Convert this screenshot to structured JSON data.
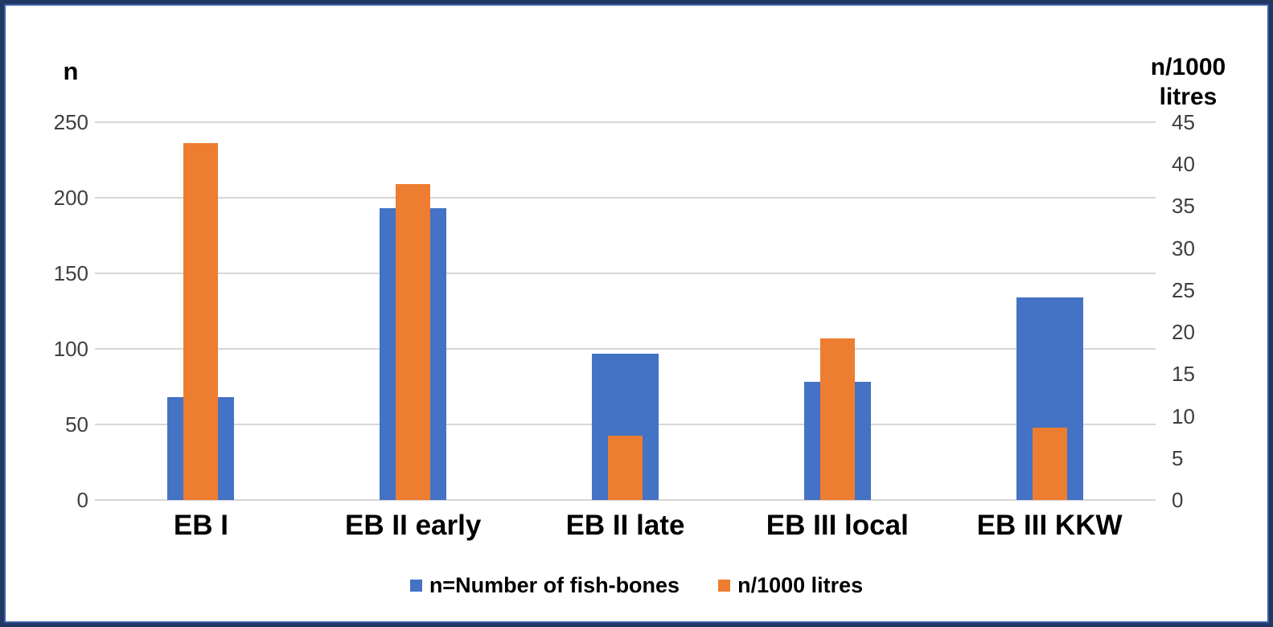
{
  "frame": {
    "border_color": "#1f3864",
    "background": "#ffffff"
  },
  "chart_data": {
    "type": "bar",
    "subtype": "overlapped-dual-axis",
    "categories": [
      "EB I",
      "EB II early",
      "EB II late",
      "EB III local",
      "EB III KKW"
    ],
    "series": [
      {
        "name": "n=Number of fish-bones",
        "axis": "left",
        "color": "#4472C4",
        "values": [
          68,
          193,
          97,
          78,
          134
        ]
      },
      {
        "name": "n/1000 litres",
        "axis": "right",
        "color": "#ED7D31",
        "values": [
          42.5,
          37.6,
          7.7,
          19.2,
          8.6
        ]
      }
    ],
    "left_axis": {
      "title": "n",
      "max": 250,
      "min": 0,
      "ticks": [
        0,
        50,
        100,
        150,
        200,
        250
      ]
    },
    "right_axis": {
      "title": "n/1000 litres",
      "title_lines": [
        "n/1000",
        "litres"
      ],
      "max": 45,
      "min": 0,
      "ticks": [
        0,
        5,
        10,
        15,
        20,
        25,
        30,
        35,
        40,
        45
      ]
    },
    "grid": "horizontal",
    "gridline_color": "#d6d6d6",
    "tick_color": "#3f3f3f",
    "legend": {
      "position": "bottom",
      "entries": [
        "n=Number of fish-bones",
        "n/1000 litres"
      ]
    }
  }
}
